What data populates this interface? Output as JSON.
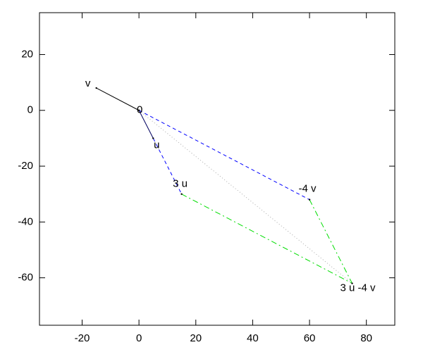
{
  "chart_data": {
    "type": "vector",
    "xlim": [
      -35,
      90
    ],
    "ylim": [
      -77,
      35
    ],
    "xticks": [
      -20,
      0,
      20,
      40,
      60,
      80
    ],
    "yticks": [
      -60,
      -40,
      -20,
      0,
      20
    ],
    "series": [
      {
        "color": "#000000",
        "style": "solid",
        "x": [
          0,
          -15
        ],
        "values": [
          0,
          8
        ]
      },
      {
        "color": "#000060",
        "style": "solid",
        "x": [
          0,
          5
        ],
        "values": [
          0,
          -10
        ]
      },
      {
        "color": "#0000ff",
        "style": "dashed",
        "x": [
          5,
          15
        ],
        "values": [
          -10,
          -30
        ]
      },
      {
        "color": "#0000ff",
        "style": "dashed",
        "x": [
          0,
          60
        ],
        "values": [
          0,
          -32
        ]
      },
      {
        "color": "#00dd00",
        "style": "dashdot",
        "x": [
          15,
          75
        ],
        "values": [
          -30,
          -62
        ]
      },
      {
        "color": "#00dd00",
        "style": "dashdot",
        "x": [
          60,
          75
        ],
        "values": [
          -32,
          -62
        ]
      },
      {
        "color": "#aaaaaa",
        "style": "dotted",
        "x": [
          0,
          75
        ],
        "values": [
          0,
          -62
        ]
      }
    ],
    "points": [
      {
        "label": "v",
        "x": -15,
        "y": 8
      },
      {
        "label": "0",
        "x": 0,
        "y": 0
      },
      {
        "label": "u",
        "x": 5,
        "y": -10
      },
      {
        "label": "3 u",
        "x": 15,
        "y": -30
      },
      {
        "label": "-4 v",
        "x": 60,
        "y": -32
      },
      {
        "label": "3 u -4 v",
        "x": 75,
        "y": -62
      }
    ]
  }
}
